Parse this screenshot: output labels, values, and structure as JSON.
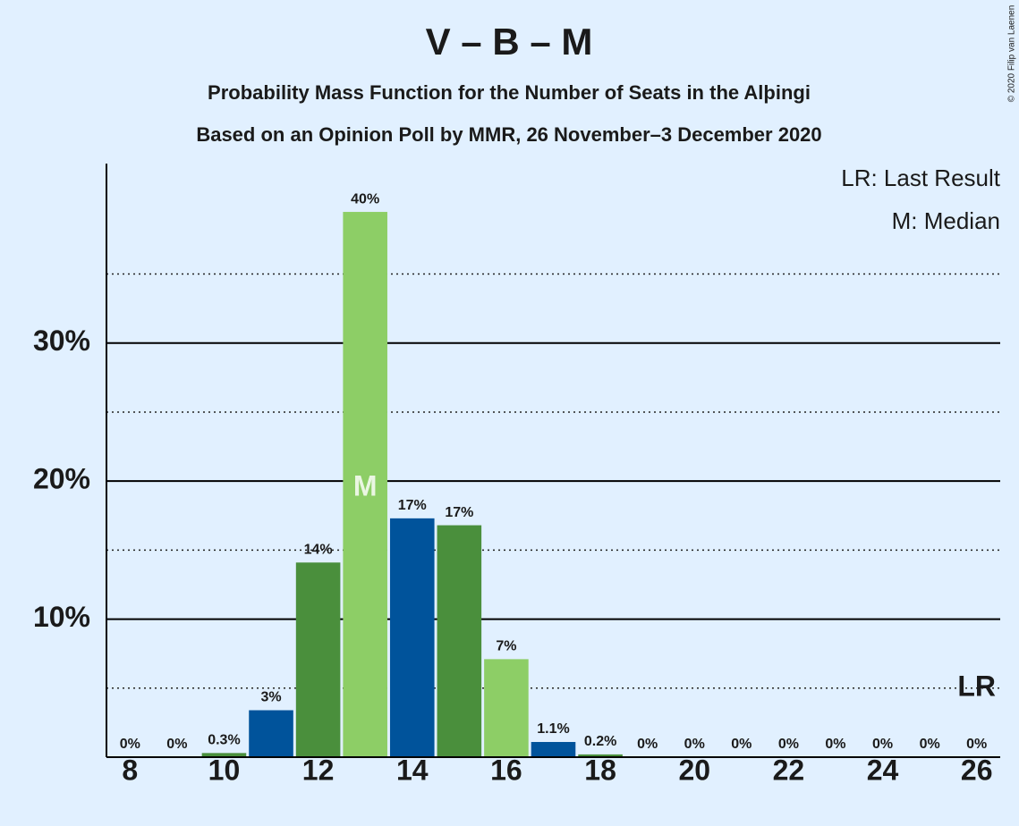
{
  "chart_data": {
    "type": "bar",
    "title": "V – B – M",
    "subtitle": "Probability Mass Function for the Number of Seats in the Alþingi",
    "subtitle2": "Based on an Opinion Poll by MMR, 26 November–3 December 2020",
    "copyright": "© 2020 Filip van Laenen",
    "x": [
      8,
      9,
      10,
      11,
      12,
      13,
      14,
      15,
      16,
      17,
      18,
      19,
      20,
      21,
      22,
      23,
      24,
      25,
      26
    ],
    "values": [
      0,
      0,
      0.3,
      3.4,
      14.1,
      39.5,
      17.3,
      16.8,
      7.1,
      1.1,
      0.2,
      0,
      0,
      0,
      0,
      0,
      0,
      0,
      0
    ],
    "value_labels": [
      "0%",
      "0%",
      "0.3%",
      "3%",
      "14%",
      "40%",
      "17%",
      "17%",
      "7%",
      "1.1%",
      "0.2%",
      "0%",
      "0%",
      "0%",
      "0%",
      "0%",
      "0%",
      "0%",
      "0%"
    ],
    "colors": [
      "#8dce66",
      "#00539b",
      "#4a8f3c",
      "#00539b",
      "#4a8f3c",
      "#8dce66",
      "#00539b",
      "#4a8f3c",
      "#8dce66",
      "#00539b",
      "#4a8f3c",
      "#8dce66",
      "#00539b",
      "#4a8f3c",
      "#8dce66",
      "#00539b",
      "#4a8f3c",
      "#8dce66",
      "#00539b"
    ],
    "xlim": [
      7.5,
      26.5
    ],
    "xticks": [
      8,
      10,
      12,
      14,
      16,
      18,
      20,
      22,
      24,
      26
    ],
    "ylim": [
      0,
      43
    ],
    "yticks": [
      {
        "value": 10,
        "label": "10%"
      },
      {
        "value": 20,
        "label": "20%"
      },
      {
        "value": 30,
        "label": "30%"
      }
    ],
    "minor_yticks": [
      5,
      15,
      25,
      35
    ],
    "median": 13,
    "median_label": "M",
    "last_result": 26,
    "last_result_label": "LR",
    "legend": [
      "LR: Last Result",
      "M: Median"
    ],
    "legend_position": "upper right"
  }
}
